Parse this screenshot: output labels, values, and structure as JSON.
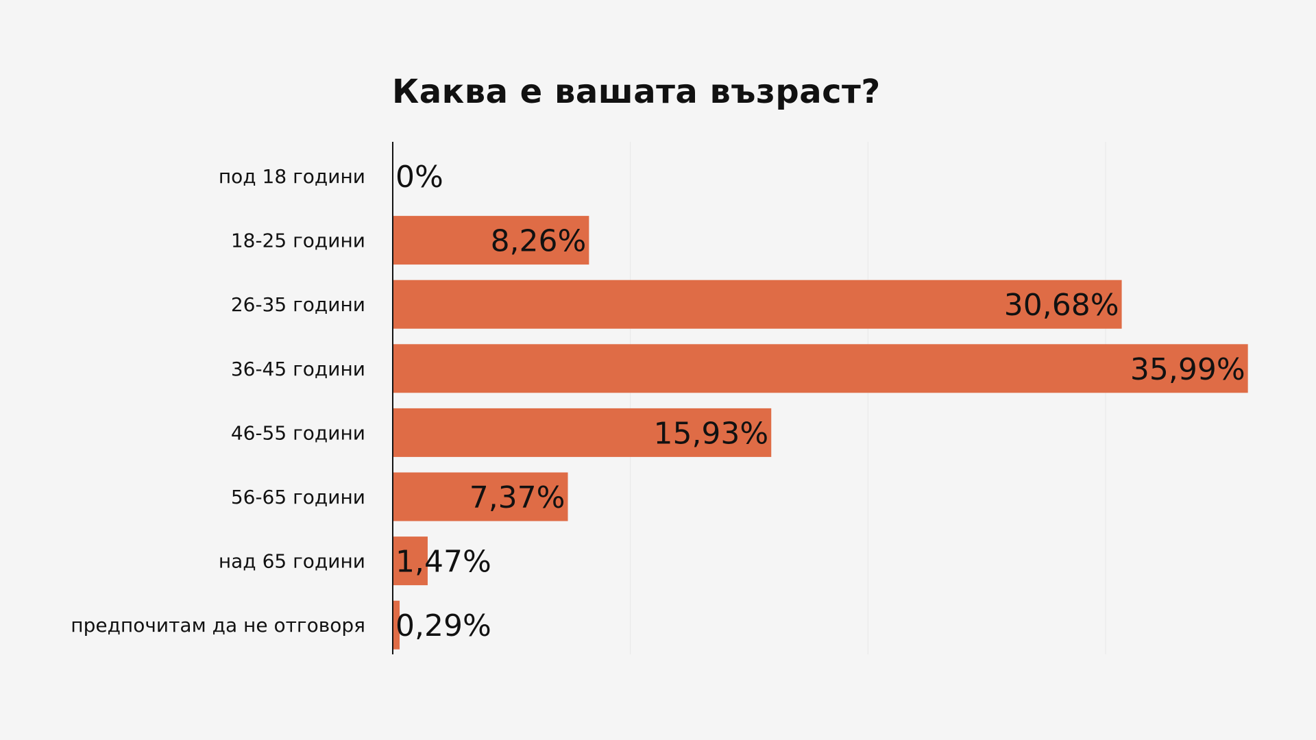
{
  "chart_data": {
    "type": "bar",
    "orientation": "horizontal",
    "title": "Каква е вашата възраст?",
    "categories": [
      "под 18 години",
      "18-25 години",
      "26-35 години",
      "36-45 години",
      "46-55 години",
      "56-65 години",
      "над 65 години",
      "предпочитам да не отговоря"
    ],
    "values": [
      0,
      8.26,
      30.68,
      35.99,
      15.93,
      7.37,
      1.47,
      0.29
    ],
    "data_labels": [
      "0%",
      "8,26%",
      "30,68%",
      "35,99%",
      "15,93%",
      "7,37%",
      "1,47%",
      "0,29%"
    ],
    "xlabel": "",
    "ylabel": "",
    "xlim": [
      0,
      40
    ],
    "grid": true,
    "legend": "none",
    "bar_color": "#df6c46",
    "axis_color": "#111111",
    "grid_color": "#e8e8e8",
    "background": "#f5f5f5"
  }
}
